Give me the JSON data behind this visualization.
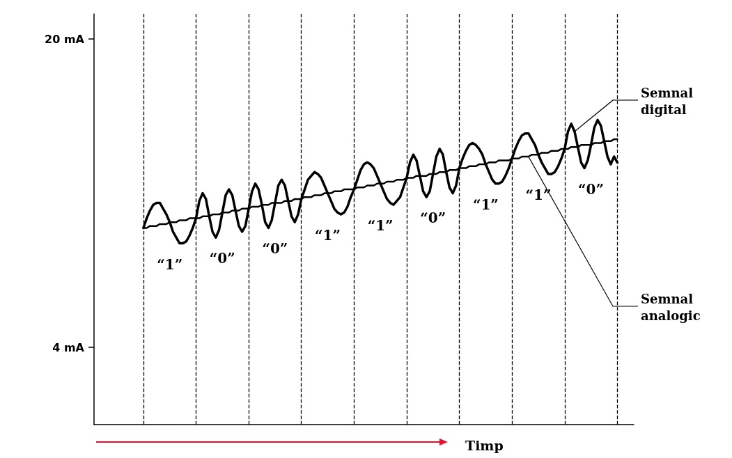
{
  "chart_data": {
    "type": "line",
    "xlabel": "Timp",
    "ylim": [
      0,
      21.3
    ],
    "yticks": [
      {
        "value": 20,
        "label": "20 mA"
      },
      {
        "value": 4,
        "label": "4 mA"
      }
    ],
    "tick_labels": "y",
    "grid": false,
    "categories": [
      null,
      null,
      null,
      null,
      null,
      null,
      null,
      null,
      null,
      null,
      null,
      null,
      null,
      null,
      null,
      null,
      null,
      null,
      null,
      null,
      null,
      null,
      null,
      null,
      null,
      null,
      null,
      null,
      null,
      null,
      null,
      null,
      null,
      null,
      null,
      null,
      null,
      null,
      null,
      null,
      null,
      null,
      null,
      null,
      null,
      null,
      null,
      null,
      null,
      null,
      null,
      null,
      null,
      null,
      null,
      null,
      null,
      null,
      null,
      null,
      null,
      null,
      null,
      null,
      null,
      null,
      null,
      null,
      null,
      null,
      null,
      null,
      null,
      null,
      null,
      null,
      null,
      null,
      null,
      null,
      null,
      null,
      null,
      null,
      null,
      null,
      null,
      null,
      null,
      null,
      null,
      null,
      null,
      null,
      null,
      null,
      null,
      null,
      null,
      null,
      null,
      null,
      null,
      null,
      null,
      null,
      null,
      null,
      null,
      null,
      null,
      null,
      null,
      null,
      null,
      null,
      null,
      null,
      null,
      null,
      null,
      null,
      null,
      null,
      null,
      null,
      null,
      null,
      null,
      null,
      null,
      null,
      null,
      null,
      null,
      null,
      null,
      null,
      null,
      null,
      null,
      null,
      null,
      null,
      null,
      null,
      null,
      null,
      null,
      null,
      null,
      null,
      null,
      null,
      null,
      null,
      null,
      null,
      null,
      null,
      null,
      null,
      null,
      null,
      null
    ],
    "series": [
      {
        "color": "#000000",
        "values": [
          null,
          null,
          null,
          null,
          null,
          null,
          null,
          null,
          null,
          null,
          null,
          null,
          null,
          null,
          null,
          10.2,
          10.7,
          11.1,
          11.4,
          11.5,
          11.5,
          11.2,
          10.9,
          10.5,
          10.0,
          9.7,
          9.4,
          9.4,
          9.5,
          9.8,
          10.2,
          10.7,
          11.6,
          12.0,
          11.7,
          10.8,
          10.0,
          9.7,
          10.1,
          11.0,
          11.9,
          12.2,
          11.9,
          11.1,
          10.3,
          10.0,
          10.3,
          11.2,
          12.1,
          12.5,
          12.2,
          11.4,
          10.5,
          10.2,
          10.6,
          11.5,
          12.4,
          12.7,
          12.4,
          11.6,
          10.8,
          10.5,
          10.9,
          11.7,
          12.2,
          12.7,
          12.9,
          13.1,
          13.0,
          12.8,
          12.4,
          12.0,
          11.6,
          11.2,
          11.0,
          10.9,
          11.0,
          11.3,
          11.8,
          12.2,
          12.7,
          13.2,
          13.5,
          13.6,
          13.5,
          13.3,
          12.9,
          12.5,
          12.1,
          11.7,
          11.5,
          11.4,
          11.6,
          11.8,
          12.3,
          12.8,
          13.6,
          14.0,
          13.7,
          12.9,
          12.1,
          11.8,
          12.1,
          13.0,
          13.9,
          14.3,
          14.0,
          13.1,
          12.3,
          12.0,
          12.4,
          13.3,
          13.8,
          14.2,
          14.5,
          14.6,
          14.5,
          14.3,
          14.0,
          13.5,
          13.1,
          12.7,
          12.5,
          12.5,
          12.6,
          12.9,
          13.3,
          13.8,
          14.3,
          14.7,
          15.0,
          15.1,
          15.1,
          14.8,
          14.5,
          14.0,
          13.6,
          13.3,
          13.0,
          13.0,
          13.1,
          13.4,
          13.8,
          14.3,
          15.2,
          15.6,
          15.2,
          14.4,
          13.6,
          13.3,
          13.7,
          14.5,
          15.4,
          15.8,
          15.5,
          14.7,
          13.9,
          13.5,
          13.9,
          13.6,
          null,
          null,
          null,
          null,
          null
        ]
      },
      {
        "color": "#000000",
        "values": [
          null,
          null,
          null,
          null,
          null,
          null,
          null,
          null,
          null,
          null,
          null,
          null,
          null,
          null,
          null,
          10.2,
          10.2,
          10.3,
          10.3,
          10.3,
          10.4,
          10.4,
          10.4,
          10.5,
          10.5,
          10.5,
          10.6,
          10.6,
          10.6,
          10.7,
          10.7,
          10.7,
          10.7,
          10.8,
          10.8,
          10.8,
          10.9,
          10.9,
          10.9,
          11.0,
          11.0,
          11.0,
          11.1,
          11.1,
          11.1,
          11.2,
          11.2,
          11.2,
          11.3,
          11.3,
          11.3,
          11.4,
          11.4,
          11.4,
          11.5,
          11.5,
          11.5,
          11.5,
          11.6,
          11.6,
          11.6,
          11.7,
          11.7,
          11.7,
          11.8,
          11.8,
          11.8,
          11.9,
          11.9,
          11.9,
          12.0,
          12.0,
          12.0,
          12.1,
          12.1,
          12.1,
          12.2,
          12.2,
          12.2,
          12.2,
          12.3,
          12.3,
          12.3,
          12.4,
          12.4,
          12.4,
          12.5,
          12.5,
          12.5,
          12.6,
          12.6,
          12.6,
          12.7,
          12.7,
          12.7,
          12.8,
          12.8,
          12.8,
          12.9,
          12.9,
          12.9,
          12.9,
          13.0,
          13.0,
          13.0,
          13.1,
          13.1,
          13.1,
          13.2,
          13.2,
          13.2,
          13.3,
          13.3,
          13.3,
          13.4,
          13.4,
          13.4,
          13.5,
          13.5,
          13.5,
          13.6,
          13.6,
          13.6,
          13.7,
          13.7,
          13.7,
          13.7,
          13.8,
          13.8,
          13.8,
          13.9,
          13.9,
          13.9,
          14.0,
          14.0,
          14.0,
          14.1,
          14.1,
          14.1,
          14.2,
          14.2,
          14.2,
          14.3,
          14.3,
          14.3,
          14.4,
          14.4,
          14.4,
          14.5,
          14.5,
          14.5,
          14.5,
          14.6,
          14.6,
          14.6,
          14.7,
          14.7,
          14.7,
          14.8,
          14.8,
          null,
          null,
          null,
          null,
          null
        ]
      }
    ],
    "ref_lines": [
      {
        "axis": "x",
        "color": "#000000",
        "line_style": "dashed"
      },
      {
        "axis": "x",
        "color": "#000000",
        "line_style": "dashed"
      },
      {
        "axis": "x",
        "color": "#000000",
        "line_style": "dashed"
      },
      {
        "axis": "x",
        "color": "#000000",
        "line_style": "dashed"
      },
      {
        "axis": "x",
        "color": "#000000",
        "line_style": "dashed"
      },
      {
        "axis": "x",
        "color": "#000000",
        "line_style": "dashed"
      },
      {
        "axis": "x",
        "color": "#000000",
        "line_style": "dashed"
      },
      {
        "axis": "x",
        "color": "#000000",
        "line_style": "dashed"
      },
      {
        "axis": "x",
        "color": "#000000",
        "line_style": "dashed"
      },
      {
        "axis": "x",
        "color": "#000000",
        "line_style": "dashed"
      }
    ],
    "annotations": [
      "“1”",
      "“0”",
      "“0”",
      "“1”",
      "“1”",
      "“0”",
      "“1”",
      "“1”",
      "“0”",
      "Semnal digital",
      "Semnal analogic"
    ]
  }
}
